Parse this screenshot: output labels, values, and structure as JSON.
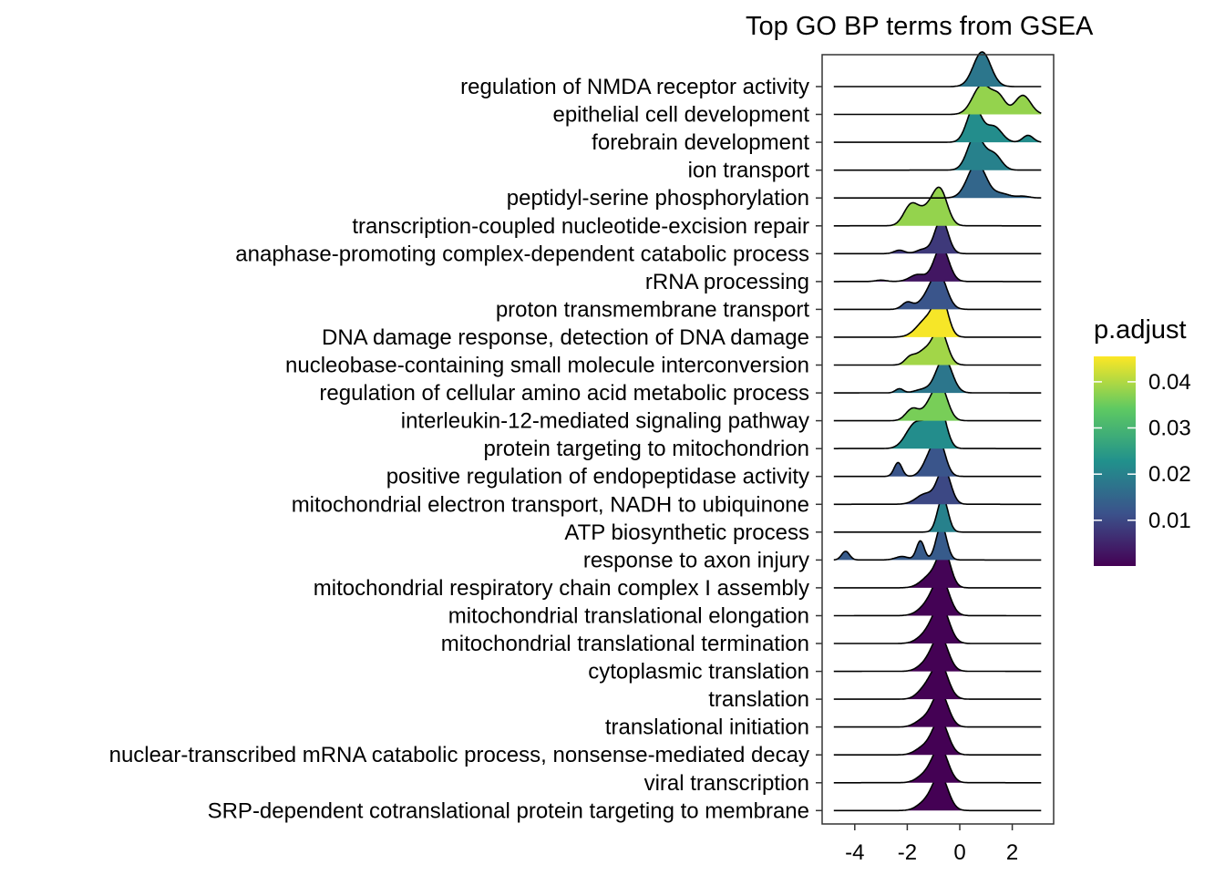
{
  "chart_data": {
    "type": "ridgeline",
    "title": "Top GO BP terms from GSEA",
    "xlabel": "",
    "ylabel": "",
    "xlim": [
      -5,
      3.3
    ],
    "xticks": [
      -4,
      -2,
      0,
      2
    ],
    "xtick_labels": [
      "-4",
      "-2",
      "0",
      "2"
    ],
    "grid": false,
    "legend": {
      "title": "p.adjust",
      "position": "right",
      "range": [
        0.0001,
        0.0455
      ],
      "ticks": [
        0.01,
        0.02,
        0.03,
        0.04
      ],
      "tick_labels": [
        "0.01",
        "0.02",
        "0.03",
        "0.04"
      ],
      "colormap": [
        "#440154",
        "#3b528b",
        "#21918c",
        "#5ec962",
        "#fde725"
      ]
    },
    "series": [
      {
        "name": "regulation of NMDA receptor activity",
        "p_adjust": 0.018,
        "x_range": [
          -4.8,
          3.1
        ],
        "peaks": [
          {
            "x": 0.85,
            "w": 0.33,
            "h": 1.0
          }
        ]
      },
      {
        "name": "epithelial cell development",
        "p_adjust": 0.038,
        "x_range": [
          -4.8,
          3.1
        ],
        "peaks": [
          {
            "x": 0.85,
            "w": 0.35,
            "h": 0.85
          },
          {
            "x": 1.5,
            "w": 0.25,
            "h": 0.45
          },
          {
            "x": 2.4,
            "w": 0.3,
            "h": 0.55
          }
        ]
      },
      {
        "name": "forebrain development",
        "p_adjust": 0.022,
        "x_range": [
          -4.8,
          3.1
        ],
        "peaks": [
          {
            "x": 0.55,
            "w": 0.28,
            "h": 1.0
          },
          {
            "x": 1.3,
            "w": 0.3,
            "h": 0.45
          },
          {
            "x": 2.6,
            "w": 0.2,
            "h": 0.2
          }
        ]
      },
      {
        "name": "ion transport",
        "p_adjust": 0.02,
        "x_range": [
          -4.8,
          3.1
        ],
        "peaks": [
          {
            "x": 0.6,
            "w": 0.3,
            "h": 1.0
          },
          {
            "x": 1.3,
            "w": 0.28,
            "h": 0.45
          }
        ]
      },
      {
        "name": "peptidyl-serine phosphorylation",
        "p_adjust": 0.015,
        "x_range": [
          -4.8,
          3.1
        ],
        "peaks": [
          {
            "x": 0.65,
            "w": 0.35,
            "h": 1.0
          },
          {
            "x": 1.6,
            "w": 0.3,
            "h": 0.12
          },
          {
            "x": 2.4,
            "w": 0.25,
            "h": 0.05
          }
        ]
      },
      {
        "name": "transcription-coupled nucleotide-excision repair",
        "p_adjust": 0.038,
        "x_range": [
          -4.8,
          3.1
        ],
        "peaks": [
          {
            "x": -0.75,
            "w": 0.28,
            "h": 1.0
          },
          {
            "x": -1.85,
            "w": 0.28,
            "h": 0.6
          },
          {
            "x": -1.25,
            "w": 0.3,
            "h": 0.4
          }
        ]
      },
      {
        "name": "anaphase-promoting complex-dependent catabolic process",
        "p_adjust": 0.008,
        "x_range": [
          -4.8,
          3.1
        ],
        "peaks": [
          {
            "x": -0.7,
            "w": 0.25,
            "h": 1.0
          },
          {
            "x": -2.3,
            "w": 0.2,
            "h": 0.1
          },
          {
            "x": -1.4,
            "w": 0.25,
            "h": 0.12
          }
        ]
      },
      {
        "name": "rRNA processing",
        "p_adjust": 0.003,
        "x_range": [
          -4.8,
          3.1
        ],
        "peaks": [
          {
            "x": -0.7,
            "w": 0.28,
            "h": 1.0
          },
          {
            "x": -1.6,
            "w": 0.3,
            "h": 0.2
          },
          {
            "x": -3.0,
            "w": 0.2,
            "h": 0.04
          }
        ]
      },
      {
        "name": "proton transmembrane transport",
        "p_adjust": 0.012,
        "x_range": [
          -4.8,
          3.1
        ],
        "peaks": [
          {
            "x": -0.8,
            "w": 0.3,
            "h": 1.0
          },
          {
            "x": -2.0,
            "w": 0.2,
            "h": 0.2
          },
          {
            "x": -1.3,
            "w": 0.3,
            "h": 0.25
          }
        ]
      },
      {
        "name": "DNA damage response, detection of DNA damage",
        "p_adjust": 0.045,
        "x_range": [
          -4.8,
          3.1
        ],
        "peaks": [
          {
            "x": -0.7,
            "w": 0.25,
            "h": 1.0
          },
          {
            "x": -1.2,
            "w": 0.4,
            "h": 0.55
          }
        ]
      },
      {
        "name": "nucleobase-containing small molecule interconversion",
        "p_adjust": 0.039,
        "x_range": [
          -4.8,
          3.1
        ],
        "peaks": [
          {
            "x": -0.75,
            "w": 0.27,
            "h": 1.0
          },
          {
            "x": -1.35,
            "w": 0.3,
            "h": 0.4
          },
          {
            "x": -1.9,
            "w": 0.2,
            "h": 0.2
          }
        ]
      },
      {
        "name": "regulation of cellular amino acid metabolic process",
        "p_adjust": 0.018,
        "x_range": [
          -4.8,
          3.1
        ],
        "peaks": [
          {
            "x": -0.6,
            "w": 0.3,
            "h": 1.0
          },
          {
            "x": -2.3,
            "w": 0.15,
            "h": 0.12
          },
          {
            "x": -1.4,
            "w": 0.3,
            "h": 0.1
          }
        ]
      },
      {
        "name": "interleukin-12-mediated signaling pathway",
        "p_adjust": 0.036,
        "x_range": [
          -4.8,
          3.1
        ],
        "peaks": [
          {
            "x": -0.75,
            "w": 0.28,
            "h": 1.0
          },
          {
            "x": -1.8,
            "w": 0.25,
            "h": 0.35
          },
          {
            "x": -1.2,
            "w": 0.25,
            "h": 0.3
          }
        ]
      },
      {
        "name": "protein targeting to mitochondrion",
        "p_adjust": 0.022,
        "x_range": [
          -4.8,
          3.1
        ],
        "peaks": [
          {
            "x": -0.75,
            "w": 0.25,
            "h": 1.0
          },
          {
            "x": -1.7,
            "w": 0.35,
            "h": 0.7
          },
          {
            "x": -1.1,
            "w": 0.3,
            "h": 0.5
          }
        ]
      },
      {
        "name": "positive regulation of endopeptidase activity",
        "p_adjust": 0.012,
        "x_range": [
          -4.8,
          3.1
        ],
        "peaks": [
          {
            "x": -0.8,
            "w": 0.25,
            "h": 1.0
          },
          {
            "x": -2.35,
            "w": 0.15,
            "h": 0.4
          },
          {
            "x": -1.2,
            "w": 0.25,
            "h": 0.4
          }
        ]
      },
      {
        "name": "mitochondrial electron transport, NADH to ubiquinone",
        "p_adjust": 0.01,
        "x_range": [
          -4.8,
          3.1
        ],
        "peaks": [
          {
            "x": -0.6,
            "w": 0.25,
            "h": 1.0
          },
          {
            "x": -1.3,
            "w": 0.35,
            "h": 0.3
          }
        ]
      },
      {
        "name": "ATP biosynthetic process",
        "p_adjust": 0.02,
        "x_range": [
          -4.8,
          3.1
        ],
        "peaks": [
          {
            "x": -0.65,
            "w": 0.2,
            "h": 1.0
          }
        ]
      },
      {
        "name": "response to axon injury",
        "p_adjust": 0.013,
        "x_range": [
          -4.8,
          3.1
        ],
        "peaks": [
          {
            "x": -0.7,
            "w": 0.2,
            "h": 1.0
          },
          {
            "x": -1.5,
            "w": 0.15,
            "h": 0.55
          },
          {
            "x": -4.35,
            "w": 0.15,
            "h": 0.25
          },
          {
            "x": -2.2,
            "w": 0.25,
            "h": 0.1
          }
        ]
      },
      {
        "name": "mitochondrial respiratory chain complex I assembly",
        "p_adjust": 0.0005,
        "x_range": [
          -4.8,
          3.1
        ],
        "peaks": [
          {
            "x": -0.6,
            "w": 0.25,
            "h": 1.0
          },
          {
            "x": -1.1,
            "w": 0.35,
            "h": 0.35
          }
        ]
      },
      {
        "name": "mitochondrial translational elongation",
        "p_adjust": 0.0003,
        "x_range": [
          -4.8,
          3.1
        ],
        "peaks": [
          {
            "x": -0.7,
            "w": 0.3,
            "h": 1.0
          },
          {
            "x": -1.2,
            "w": 0.35,
            "h": 0.3
          }
        ]
      },
      {
        "name": "mitochondrial translational termination",
        "p_adjust": 0.0003,
        "x_range": [
          -4.8,
          3.1
        ],
        "peaks": [
          {
            "x": -0.7,
            "w": 0.3,
            "h": 1.0
          },
          {
            "x": -1.2,
            "w": 0.35,
            "h": 0.3
          }
        ]
      },
      {
        "name": "cytoplasmic translation",
        "p_adjust": 0.0002,
        "x_range": [
          -4.8,
          3.1
        ],
        "peaks": [
          {
            "x": -0.75,
            "w": 0.3,
            "h": 1.0
          },
          {
            "x": -1.3,
            "w": 0.3,
            "h": 0.2
          }
        ]
      },
      {
        "name": "translation",
        "p_adjust": 0.0001,
        "x_range": [
          -4.8,
          3.1
        ],
        "peaks": [
          {
            "x": -0.75,
            "w": 0.3,
            "h": 1.0
          },
          {
            "x": -1.3,
            "w": 0.3,
            "h": 0.3
          }
        ]
      },
      {
        "name": "translational initiation",
        "p_adjust": 0.0001,
        "x_range": [
          -4.8,
          3.1
        ],
        "peaks": [
          {
            "x": -0.75,
            "w": 0.3,
            "h": 1.0
          },
          {
            "x": -1.4,
            "w": 0.3,
            "h": 0.2
          }
        ]
      },
      {
        "name": "nuclear-transcribed mRNA catabolic process, nonsense-mediated decay",
        "p_adjust": 0.0001,
        "x_range": [
          -4.8,
          3.1
        ],
        "peaks": [
          {
            "x": -0.75,
            "w": 0.3,
            "h": 1.0
          },
          {
            "x": -1.4,
            "w": 0.3,
            "h": 0.2
          }
        ]
      },
      {
        "name": "viral transcription",
        "p_adjust": 0.0001,
        "x_range": [
          -4.8,
          3.1
        ],
        "peaks": [
          {
            "x": -0.75,
            "w": 0.3,
            "h": 1.0
          },
          {
            "x": -1.35,
            "w": 0.3,
            "h": 0.2
          }
        ]
      },
      {
        "name": "SRP-dependent cotranslational protein targeting to membrane",
        "p_adjust": 0.0001,
        "x_range": [
          -4.8,
          3.1
        ],
        "peaks": [
          {
            "x": -0.75,
            "w": 0.3,
            "h": 1.0
          },
          {
            "x": -1.35,
            "w": 0.3,
            "h": 0.2
          }
        ]
      }
    ]
  }
}
